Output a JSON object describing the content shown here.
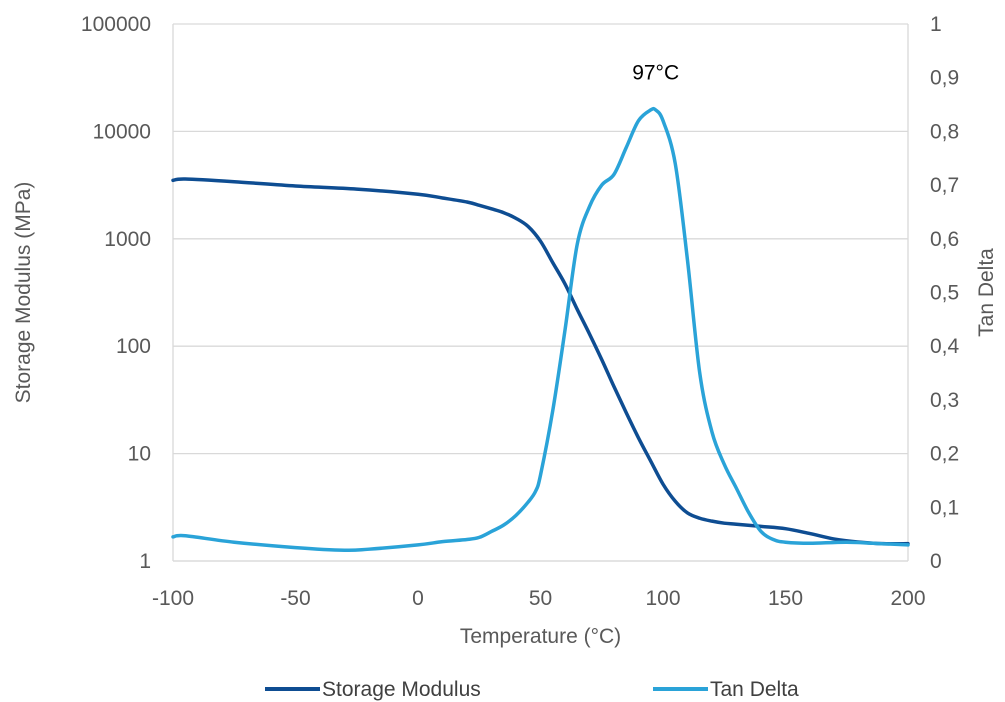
{
  "chart_data": {
    "type": "line",
    "xlabel": "Temperature (°C)",
    "ylabel": "Storage Modulus (MPa)",
    "y2label": "Tan Delta",
    "xlim": [
      -100,
      200
    ],
    "xticks": [
      "-100",
      "-50",
      "0",
      "50",
      "100",
      "150",
      "200"
    ],
    "ylim": [
      1,
      100000
    ],
    "yscale": "log",
    "yticks": [
      "1",
      "10",
      "100",
      "1000",
      "10000",
      "100000"
    ],
    "y2lim": [
      0,
      1
    ],
    "y2ticks": [
      "0",
      "0,1",
      "0,2",
      "0,3",
      "0,4",
      "0,5",
      "0,6",
      "0,7",
      "0,8",
      "0,9",
      "1"
    ],
    "grid": "horizontal",
    "legend_position": "bottom",
    "annotations": [
      {
        "text": "97°C",
        "x": 97,
        "y2": 0.91
      }
    ],
    "series": [
      {
        "name": "Storage Modulus",
        "axis": "left",
        "color": "#0e4d92",
        "x": [
          -100,
          -95,
          -75,
          -50,
          -25,
          0,
          10,
          20,
          25,
          30,
          35,
          40,
          45,
          50,
          55,
          60,
          65,
          70,
          75,
          80,
          85,
          90,
          95,
          100,
          105,
          110,
          115,
          120,
          125,
          130,
          140,
          150,
          160,
          170,
          180,
          190,
          200
        ],
        "values": [
          3500,
          3600,
          3400,
          3100,
          2900,
          2600,
          2400,
          2200,
          2050,
          1900,
          1750,
          1550,
          1300,
          950,
          600,
          380,
          220,
          130,
          75,
          42,
          24,
          14,
          8.5,
          5.2,
          3.6,
          2.8,
          2.5,
          2.35,
          2.25,
          2.2,
          2.1,
          2.0,
          1.8,
          1.6,
          1.5,
          1.45,
          1.45
        ]
      },
      {
        "name": "Tan Delta",
        "axis": "right",
        "color": "#2aa3d8",
        "x": [
          -100,
          -95,
          -75,
          -50,
          -30,
          -20,
          0,
          10,
          20,
          25,
          30,
          35,
          40,
          45,
          48,
          50,
          55,
          60,
          65,
          70,
          75,
          80,
          85,
          90,
          95,
          97,
          100,
          105,
          110,
          115,
          120,
          125,
          130,
          135,
          140,
          145,
          150,
          160,
          175,
          190,
          200
        ],
        "values": [
          0.045,
          0.047,
          0.035,
          0.025,
          0.02,
          0.022,
          0.03,
          0.036,
          0.04,
          0.044,
          0.055,
          0.067,
          0.085,
          0.11,
          0.13,
          0.16,
          0.28,
          0.43,
          0.59,
          0.66,
          0.7,
          0.72,
          0.77,
          0.82,
          0.84,
          0.84,
          0.82,
          0.74,
          0.56,
          0.35,
          0.24,
          0.18,
          0.135,
          0.09,
          0.055,
          0.04,
          0.035,
          0.033,
          0.035,
          0.032,
          0.03
        ]
      }
    ]
  }
}
